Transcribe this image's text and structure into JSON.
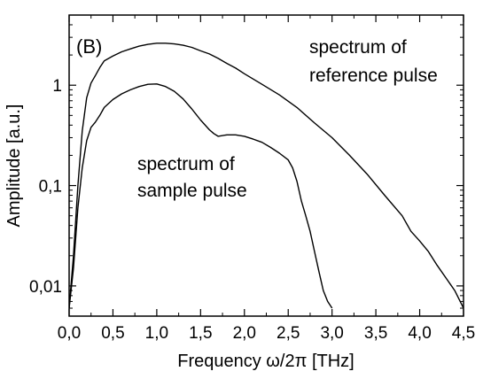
{
  "chart_data": {
    "type": "line",
    "panel_label": "(B)",
    "xlabel": "Frequency ω/2π [THz]",
    "ylabel": "Amplitude [a.u.]",
    "xlim": [
      0.0,
      4.5
    ],
    "ylim": [
      0.005,
      5.0
    ],
    "yscale": "log",
    "grid": false,
    "x_ticks": [
      0.0,
      0.5,
      1.0,
      1.5,
      2.0,
      2.5,
      3.0,
      3.5,
      4.0,
      4.5
    ],
    "x_tick_labels": [
      "0,0",
      "0,5",
      "1,0",
      "1,5",
      "2,0",
      "2,5",
      "3,0",
      "3,5",
      "4,0",
      "4,5"
    ],
    "y_ticks": [
      0.01,
      0.1,
      1
    ],
    "y_tick_labels": [
      "0,01",
      "0,1",
      "1"
    ],
    "annotations": [
      {
        "line1": "spectrum of",
        "line2": "reference pulse"
      },
      {
        "line1": "spectrum of",
        "line2": "sample pulse"
      }
    ],
    "series": [
      {
        "x": [
          0.0,
          0.05,
          0.1,
          0.15,
          0.2,
          0.25,
          0.3,
          0.35,
          0.4,
          0.5,
          0.6,
          0.7,
          0.8,
          0.9,
          1.0,
          1.1,
          1.2,
          1.3,
          1.4,
          1.5,
          1.6,
          1.7,
          1.8,
          1.9,
          2.0,
          2.2,
          2.4,
          2.6,
          2.8,
          3.0,
          3.2,
          3.4,
          3.6,
          3.8,
          3.9,
          4.0,
          4.1,
          4.2,
          4.3,
          4.4,
          4.5
        ],
        "values": [
          0.006,
          0.02,
          0.1,
          0.35,
          0.75,
          1.05,
          1.25,
          1.5,
          1.75,
          1.95,
          2.15,
          2.3,
          2.45,
          2.55,
          2.62,
          2.62,
          2.58,
          2.5,
          2.38,
          2.2,
          2.05,
          1.85,
          1.65,
          1.48,
          1.3,
          1.02,
          0.8,
          0.6,
          0.42,
          0.3,
          0.2,
          0.13,
          0.08,
          0.05,
          0.035,
          0.028,
          0.022,
          0.016,
          0.012,
          0.009,
          0.006
        ]
      },
      {
        "x": [
          0.0,
          0.05,
          0.1,
          0.15,
          0.2,
          0.25,
          0.3,
          0.35,
          0.4,
          0.5,
          0.6,
          0.7,
          0.8,
          0.9,
          1.0,
          1.1,
          1.2,
          1.3,
          1.4,
          1.5,
          1.6,
          1.65,
          1.7,
          1.8,
          1.9,
          2.0,
          2.1,
          2.2,
          2.3,
          2.4,
          2.5,
          2.55,
          2.6,
          2.65,
          2.7,
          2.75,
          2.8,
          2.85,
          2.9,
          2.95,
          3.0
        ],
        "values": [
          0.006,
          0.015,
          0.06,
          0.15,
          0.28,
          0.38,
          0.43,
          0.5,
          0.6,
          0.72,
          0.82,
          0.9,
          0.97,
          1.02,
          1.03,
          0.97,
          0.87,
          0.73,
          0.58,
          0.45,
          0.36,
          0.33,
          0.31,
          0.32,
          0.32,
          0.31,
          0.29,
          0.27,
          0.24,
          0.21,
          0.18,
          0.15,
          0.11,
          0.07,
          0.05,
          0.035,
          0.022,
          0.014,
          0.009,
          0.007,
          0.006
        ]
      }
    ]
  }
}
